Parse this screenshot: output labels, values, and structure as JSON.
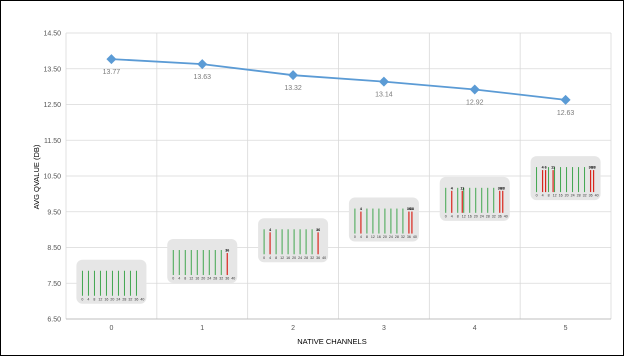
{
  "chart_data": {
    "type": "line",
    "title": "",
    "xlabel": "NATIVE CHANNELS",
    "ylabel": "AVG QVALUE (DB)",
    "categories": [
      "0",
      "1",
      "2",
      "3",
      "4",
      "5"
    ],
    "series": [
      {
        "values": [
          13.77,
          13.63,
          13.32,
          13.14,
          12.92,
          12.63
        ],
        "labels": [
          "13.77",
          "13.63",
          "13.32",
          "13.14",
          "12.92",
          "12.63"
        ]
      }
    ],
    "ylim": [
      6.5,
      14.5
    ],
    "yticks": [
      "14.50",
      "13.50",
      "12.50",
      "11.50",
      "10.50",
      "9.50",
      "8.50",
      "7.50",
      "6.50"
    ],
    "grid": true,
    "colors": {
      "line": "#5b9bd5",
      "marker": "#5b9bd5",
      "green_bar": "#2e9e3e",
      "red_bar": "#d9261c"
    },
    "insets": [
      {
        "category": "0",
        "native_channels": [],
        "marks": []
      },
      {
        "category": "1",
        "native_channels": [
          36
        ],
        "marks": [
          "36"
        ]
      },
      {
        "category": "2",
        "native_channels": [
          4,
          36
        ],
        "marks": [
          "4",
          "36"
        ]
      },
      {
        "category": "3",
        "native_channels": [
          4,
          36,
          38
        ],
        "marks": [
          "4",
          "36",
          "38"
        ]
      },
      {
        "category": "4",
        "native_channels": [
          4,
          11,
          36,
          38
        ],
        "marks": [
          "4",
          "11",
          "36",
          "38"
        ]
      },
      {
        "category": "5",
        "native_channels": [
          4,
          6,
          11,
          36,
          38
        ],
        "marks": [
          "4",
          "6",
          "11",
          "36",
          "38"
        ]
      }
    ],
    "inset_axis_labels": [
      "0",
      "4",
      "8",
      "12",
      "16",
      "20",
      "24",
      "28",
      "32",
      "36",
      "40"
    ]
  }
}
